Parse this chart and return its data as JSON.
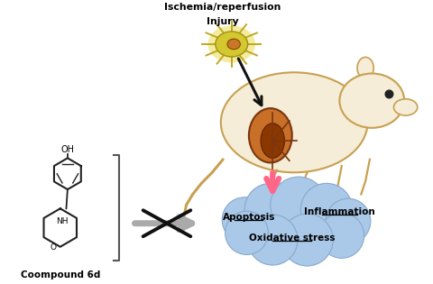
{
  "title": "",
  "bg_color": "#ffffff",
  "ischemia_label_line1": "Ischemia/reperfusion",
  "ischemia_label_line2": "Injury",
  "compound_label": "Coompound 6d",
  "apoptosis_label": "Apoptosis",
  "inflammation_label": "Inflammation",
  "oxidative_label": "Oxidative stress",
  "cloud_color": "#aac8e8",
  "cloud_edge_color": "#88aacc",
  "arrow_pink_color": "#ff6688",
  "gray_arrow_color": "#aaaaaa",
  "x_mark_color": "#111111",
  "rat_body_color": "#f5edd8",
  "rat_outline_color": "#c8a050",
  "kidney_color": "#c87028",
  "cell_color_outer": "#d4c830",
  "cell_color_inner": "#c87828",
  "black_arrow_color": "#111111",
  "bracket_color": "#555555",
  "struct_color": "#222222"
}
